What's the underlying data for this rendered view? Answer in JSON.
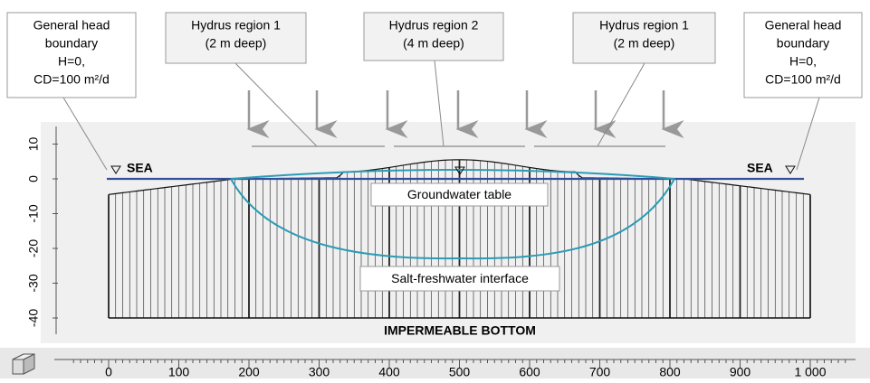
{
  "callouts": [
    {
      "lines": [
        "General head",
        "boundary",
        "H=0,",
        "CD=100 m²/d"
      ]
    },
    {
      "lines": [
        "Hydrus region 1",
        "(2 m deep)"
      ]
    },
    {
      "lines": [
        "Hydrus region 2",
        "(4 m deep)"
      ]
    },
    {
      "lines": [
        "Hydrus region 1",
        "(2 m deep)"
      ]
    },
    {
      "lines": [
        "General head",
        "boundary",
        "H=0,",
        "CD=100 m²/d"
      ]
    }
  ],
  "labels": {
    "sea_left": "SEA",
    "sea_right": "SEA",
    "groundwater_table": "Groundwater table",
    "interface": "Salt-freshwater interface",
    "bottom": "IMPERMEABLE BOTTOM"
  },
  "vertical_ruler": [
    "10",
    "0",
    "-10",
    "-20",
    "-30",
    "-40"
  ],
  "horizontal_ruler": [
    "0",
    "100",
    "200",
    "300",
    "400",
    "500",
    "600",
    "700",
    "800",
    "900",
    "1 000"
  ]
}
